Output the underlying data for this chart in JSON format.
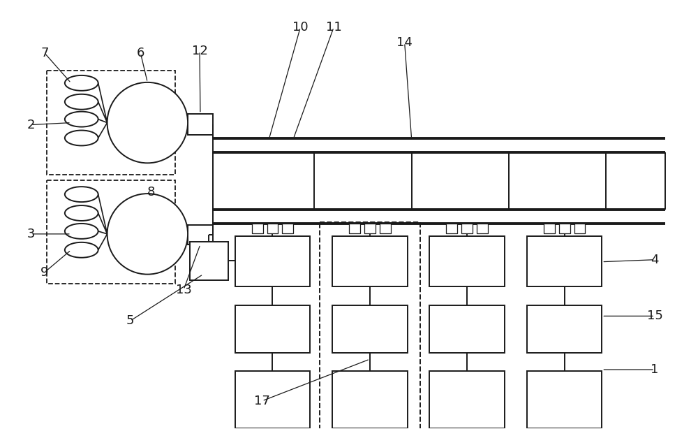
{
  "bg_color": "#ffffff",
  "line_color": "#1a1a1a",
  "lw": 1.4,
  "lw_thick": 2.2,
  "lw_rail": 2.8,
  "fig_width": 10.0,
  "fig_height": 6.14,
  "dpi": 100
}
